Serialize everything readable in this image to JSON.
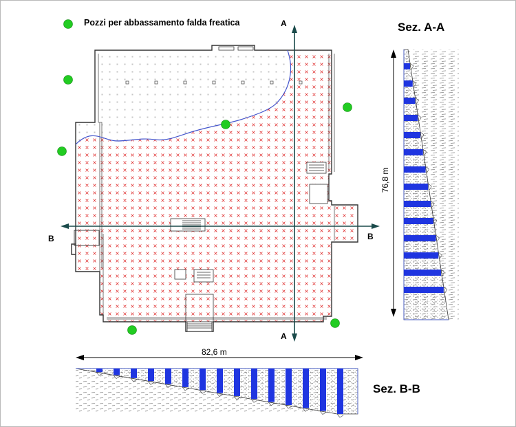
{
  "legend": {
    "label": "Pozzi per abbassamento falda freatica",
    "marker_color": "#22cc22"
  },
  "sections": {
    "aa": {
      "title": "Sez. A-A",
      "dimension": "76,8 m"
    },
    "bb": {
      "title": "Sez. B-B",
      "dimension": "82,6 m"
    }
  },
  "section_lines": {
    "a": {
      "top_label": "A",
      "bottom_label": "A"
    },
    "b": {
      "left_label": "B",
      "right_label": "B"
    }
  },
  "colors": {
    "grid_marks": "#e03030",
    "water_line": "#4455cc",
    "section_line": "#1a4a4a",
    "strata_blue": "#1f35e0",
    "walls": "#333333",
    "well": "#22cc22"
  }
}
